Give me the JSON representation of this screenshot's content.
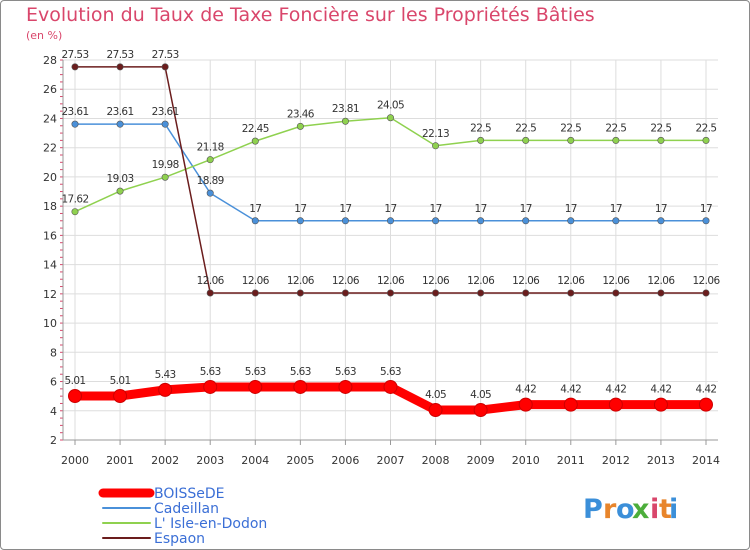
{
  "chart_data": {
    "type": "line",
    "title": "Evolution du Taux de Taxe Foncière sur les Propriétés Bâties",
    "unit_label": "(en %)",
    "xlabel": "",
    "ylabel": "",
    "ylim": [
      2,
      28
    ],
    "y_ticks": [
      2,
      4,
      6,
      8,
      10,
      12,
      14,
      16,
      18,
      20,
      22,
      24,
      26,
      28
    ],
    "categories": [
      "2000",
      "2001",
      "2002",
      "2003",
      "2004",
      "2005",
      "2006",
      "2007",
      "2008",
      "2009",
      "2010",
      "2011",
      "2012",
      "2013",
      "2014"
    ],
    "legend_position": "bottom-left",
    "series": [
      {
        "name": "BOISSeDE",
        "color": "#ff0000",
        "values": [
          5.01,
          5.01,
          5.43,
          5.63,
          5.63,
          5.63,
          5.63,
          5.63,
          4.05,
          4.05,
          4.42,
          4.42,
          4.42,
          4.42,
          4.42
        ],
        "labels": [
          "5.01",
          "5.01",
          "5.43",
          "5.63",
          "5.63",
          "5.63",
          "5.63",
          "5.63",
          "4.05",
          "4.05",
          "4.42",
          "4.42",
          "4.42",
          "4.42",
          "4.42"
        ]
      },
      {
        "name": "Cadeillan",
        "color": "#4a90d9",
        "values": [
          23.61,
          23.61,
          23.61,
          18.89,
          17,
          17,
          17,
          17,
          17,
          17,
          17,
          17,
          17,
          17,
          17
        ],
        "labels": [
          "23.61",
          "23.61",
          "23.61",
          "18.89",
          "17",
          "17",
          "17",
          "17",
          "17",
          "17",
          "17",
          "17",
          "17",
          "17",
          "17"
        ]
      },
      {
        "name": "L' Isle-en-Dodon",
        "color": "#8fd14f",
        "values": [
          17.62,
          19.03,
          19.98,
          21.18,
          22.45,
          23.46,
          23.81,
          24.05,
          22.13,
          22.5,
          22.5,
          22.5,
          22.5,
          22.5,
          22.5
        ],
        "labels": [
          "17.62",
          "19.03",
          "19.98",
          "21.18",
          "22.45",
          "23.46",
          "23.81",
          "24.05",
          "22.13",
          "22.5",
          "22.5",
          "22.5",
          "22.5",
          "22.5",
          "22.5"
        ]
      },
      {
        "name": "Espaon",
        "color": "#6b1d1d",
        "values": [
          27.53,
          27.53,
          27.53,
          12.06,
          12.06,
          12.06,
          12.06,
          12.06,
          12.06,
          12.06,
          12.06,
          12.06,
          12.06,
          12.06,
          12.06
        ],
        "labels": [
          "27.53",
          "27.53",
          "27.53",
          "12.06",
          "12.06",
          "12.06",
          "12.06",
          "12.06",
          "12.06",
          "12.06",
          "12.06",
          "12.06",
          "12.06",
          "12.06",
          "12.06"
        ]
      }
    ]
  },
  "logo": {
    "text": "Proxiti",
    "letters": [
      "P",
      "r",
      "o",
      "x",
      "i",
      "t",
      "i"
    ],
    "colors": [
      "#3b8fd9",
      "#e8852b",
      "#3b8fd9",
      "#4cae3b",
      "#d9466b",
      "#e8852b",
      "#3b8fd9"
    ]
  }
}
